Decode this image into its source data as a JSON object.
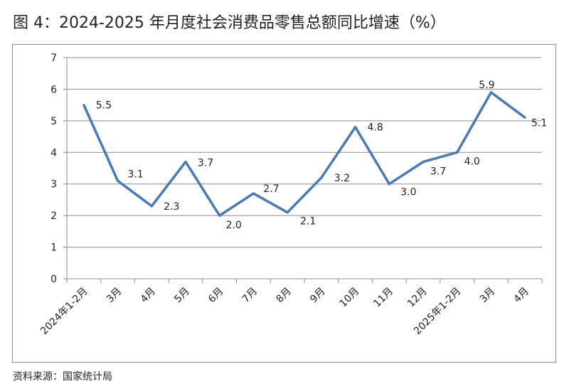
{
  "title": "图 4：2024-2025 年月度社会消费品零售总额同比增速（%）",
  "source": "资料来源：国家统计局",
  "chart_data": {
    "type": "line",
    "title": "图 4：2024-2025 年月度社会消费品零售总额同比增速（%）",
    "xlabel": "",
    "ylabel": "",
    "categories": [
      "2024年1-2月",
      "3月",
      "4月",
      "5月",
      "6月",
      "7月",
      "8月",
      "9月",
      "10月",
      "11月",
      "12月",
      "2025年1-2月",
      "3月",
      "4月"
    ],
    "values": [
      5.5,
      3.1,
      2.3,
      3.7,
      2.0,
      2.7,
      2.1,
      3.2,
      4.8,
      3.0,
      3.7,
      4.0,
      5.9,
      5.1
    ],
    "data_labels": [
      "5.5",
      "3.1",
      "2.3",
      "3.7",
      "2.0",
      "2.7",
      "2.1",
      "3.2",
      "4.8",
      "3.0",
      "3.7",
      "4.0",
      "5.9",
      "5.1"
    ],
    "ylim": [
      0,
      7
    ],
    "yticks": [
      "0",
      "1",
      "2",
      "3",
      "4",
      "5",
      "6",
      "7"
    ],
    "grid": true,
    "legend": "none",
    "line_color": "#4a7ab3"
  }
}
